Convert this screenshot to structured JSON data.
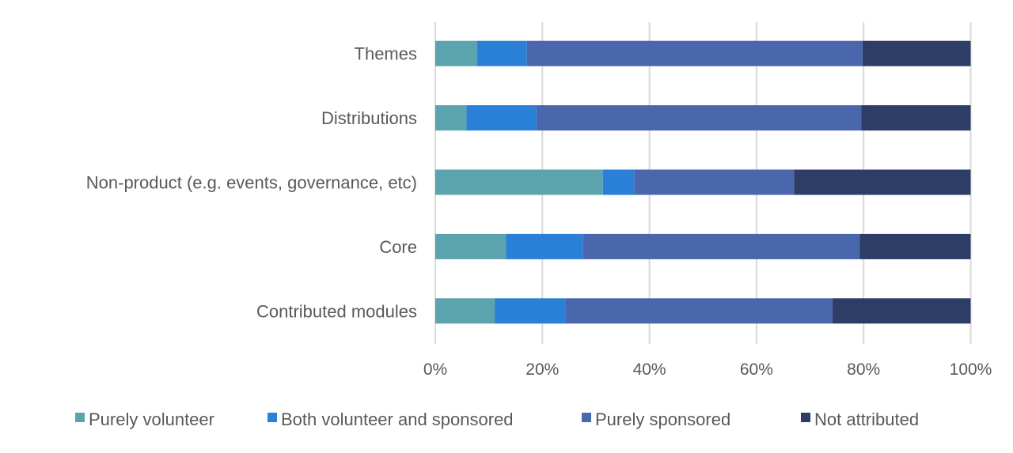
{
  "chart_data": {
    "type": "bar",
    "orientation": "horizontal",
    "stacked": "percent",
    "categories": [
      "Themes",
      "Distributions",
      "Non-product (e.g. events, governance, etc)",
      "Core",
      "Contributed modules"
    ],
    "series": [
      {
        "name": "Purely volunteer",
        "color": "#5ba3ad",
        "values": [
          7.8,
          5.8,
          31.3,
          13.2,
          11.1
        ]
      },
      {
        "name": "Both volunteer and sponsored",
        "color": "#2a7fd6",
        "values": [
          9.3,
          13.1,
          5.9,
          14.4,
          13.2
        ]
      },
      {
        "name": "Purely sponsored",
        "color": "#4a67ae",
        "values": [
          62.7,
          60.7,
          29.8,
          51.7,
          49.9
        ]
      },
      {
        "name": "Not attributed",
        "color": "#2d3d66",
        "values": [
          20.2,
          20.4,
          33.0,
          20.7,
          25.8
        ]
      }
    ],
    "xlim": [
      0,
      100
    ],
    "xticks": [
      "0%",
      "20%",
      "40%",
      "60%",
      "80%",
      "100%"
    ],
    "grid": "vertical",
    "legend": "bottom"
  }
}
